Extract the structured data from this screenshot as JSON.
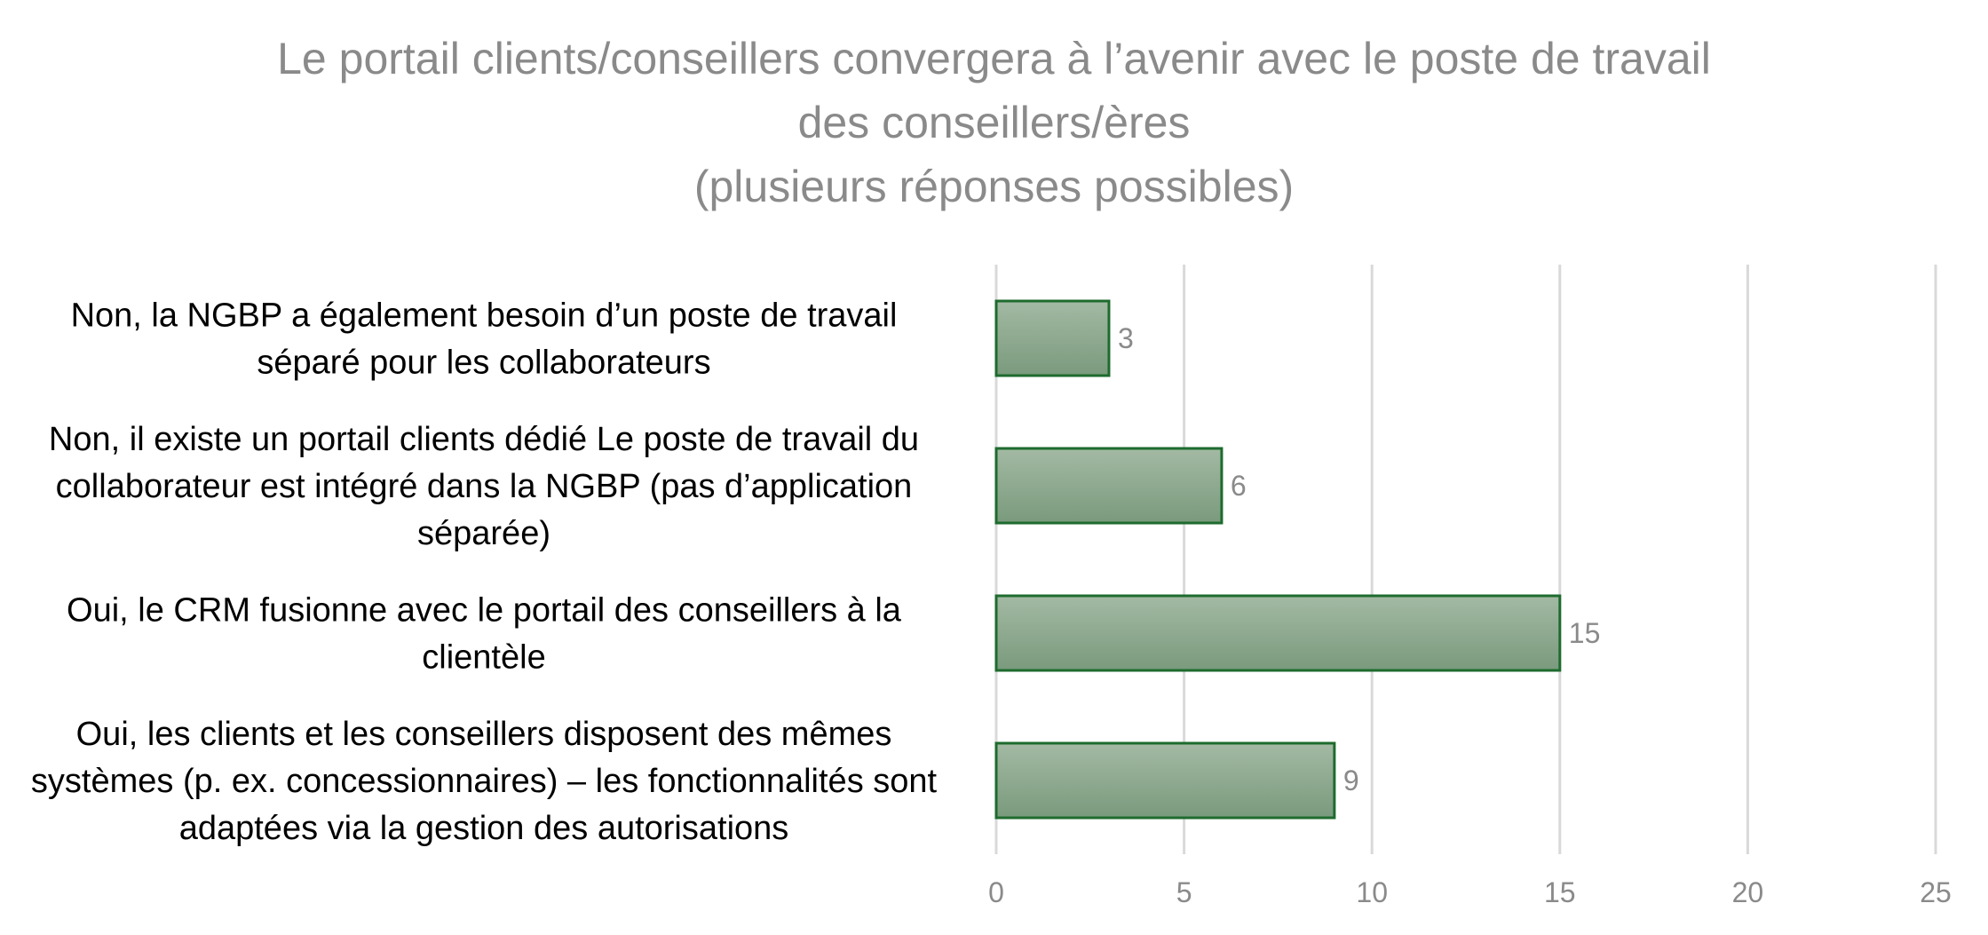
{
  "chart_data": {
    "type": "bar",
    "orientation": "horizontal",
    "title": [
      "Le portail clients/conseillers convergera à l’avenir avec le poste de travail",
      "des conseillers/ères",
      "(plusieurs réponses possibles)"
    ],
    "categories": [
      [
        "Non, la NGBP a également besoin d’un poste de travail",
        "séparé pour les collaborateurs"
      ],
      [
        "Non, il existe un portail clients dédié Le poste de travail du",
        "collaborateur est intégré dans la NGBP (pas d’application",
        "séparée)"
      ],
      [
        "Oui, le CRM fusionne avec le portail des conseillers à la",
        "clientèle"
      ],
      [
        "Oui, les clients et les conseillers disposent des mêmes",
        "systèmes (p. ex. concessionnaires) – les fonctionnalités sont",
        "adaptées via la gestion des autorisations"
      ]
    ],
    "values": [
      3,
      6,
      15,
      9
    ],
    "xlim": [
      0,
      25
    ],
    "xticks": [
      0,
      5,
      10,
      15,
      20,
      25
    ],
    "xlabel": "",
    "ylabel": "",
    "grid": "vertical",
    "legend": "none",
    "data_labels": true,
    "colors": {
      "bar_top": "#a3b9a3",
      "bar_bottom": "#7a9a7d",
      "bar_border": "#1e6b2e",
      "grid": "#d9d9d9",
      "title": "#8a8a8a",
      "tick_text": "#8a8a8a",
      "category_text": "#000000"
    }
  }
}
